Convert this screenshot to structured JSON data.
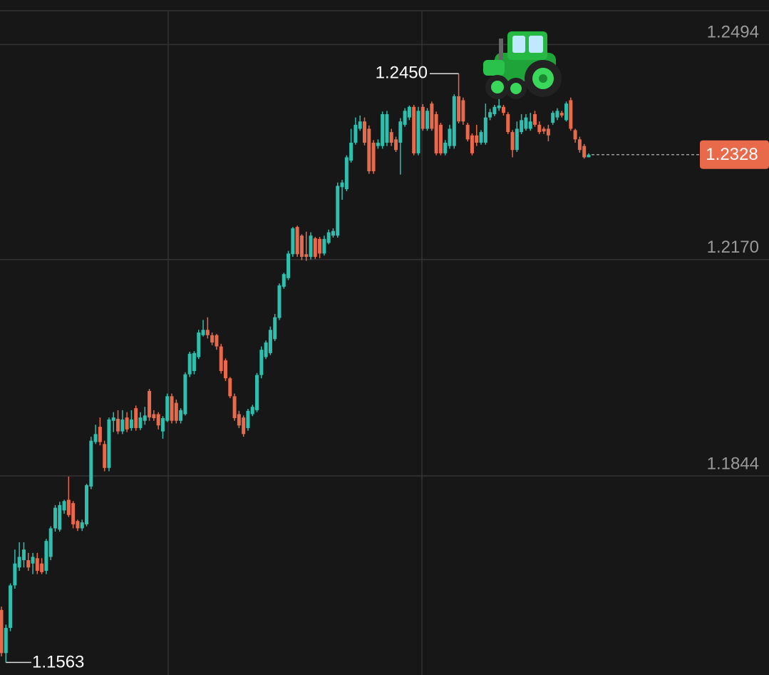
{
  "chart_data": {
    "type": "candlestick",
    "ylim": [
      1.1544,
      1.2561
    ],
    "yticks": [
      {
        "value": 1.1844,
        "label": "1.1844"
      },
      {
        "value": 1.217,
        "label": "1.2170"
      },
      {
        "value": 1.2494,
        "label": "1.2494"
      }
    ],
    "grid": true,
    "up_color": "#2fbfae",
    "down_color": "#e9694b",
    "last_price": 1.2328,
    "high_marker": {
      "value": 1.245,
      "label": "1.2450"
    },
    "low_marker": 1.1563,
    "open": [
      1.1642,
      1.1577,
      1.1615,
      1.1679,
      1.1706,
      1.1717,
      1.1717,
      1.1712,
      1.172,
      1.1712,
      1.1701,
      1.1722,
      1.1765,
      1.1763,
      1.1792,
      1.1808,
      1.1803,
      1.1776,
      1.1765,
      1.1771,
      1.1828,
      1.1895,
      1.1918,
      1.1892,
      1.1856,
      1.1927,
      1.193,
      1.1911,
      1.1932,
      1.1916,
      1.1946,
      1.1916,
      1.1927,
      1.1972,
      1.1937,
      1.1937,
      1.1911,
      1.1927,
      1.1964,
      1.1954,
      1.1927,
      1.1937,
      1.1997,
      1.2002,
      1.2023,
      1.2056,
      1.2064,
      1.2056,
      1.2056,
      1.2039,
      1.2018,
      1.1991,
      1.1964,
      1.1937,
      1.1932,
      1.1916,
      1.1937,
      1.1943,
      1.1996,
      1.2023,
      1.2029,
      1.205,
      1.2082,
      1.2129,
      1.2142,
      1.2178,
      1.2219,
      1.2206,
      1.2178,
      1.2174,
      1.2202,
      1.2201,
      1.2179,
      1.2195,
      1.2206,
      1.2206,
      1.2279,
      1.2276,
      1.2319,
      1.2346,
      1.2367,
      1.2378,
      1.2367,
      1.2346,
      1.2341,
      1.2341,
      1.2346,
      1.2362,
      1.2351,
      1.2346,
      1.2373,
      1.2384,
      1.24,
      1.233,
      1.24,
      1.2367,
      1.2405,
      1.2389,
      1.2373,
      1.233,
      1.2341,
      1.2341,
      1.2416,
      1.241,
      1.2373,
      1.2357,
      1.2357,
      1.2346,
      1.2346,
      1.2384,
      1.2389,
      1.2398,
      1.24,
      1.2389,
      1.2362,
      1.2335,
      1.2362,
      1.2367,
      1.2367,
      1.2389,
      1.2373,
      1.2367,
      1.2367,
      1.2376,
      1.2384,
      1.2391,
      1.238,
      1.241,
      1.2365,
      1.2351,
      1.2341,
      1.2324
    ],
    "high": [
      1.1647,
      1.162,
      1.1682,
      1.1733,
      1.1744,
      1.1744,
      1.1728,
      1.1728,
      1.1728,
      1.172,
      1.1749,
      1.1768,
      1.18,
      1.1805,
      1.1808,
      1.1843,
      1.1806,
      1.1778,
      1.1778,
      1.1832,
      1.1903,
      1.1921,
      1.1932,
      1.1897,
      1.1932,
      1.194,
      1.1943,
      1.1943,
      1.194,
      1.1943,
      1.195,
      1.194,
      1.1948,
      1.1975,
      1.1943,
      1.194,
      1.1934,
      1.1968,
      1.1968,
      1.1959,
      1.1946,
      1.2,
      1.2031,
      1.2032,
      1.2064,
      1.2079,
      1.2083,
      1.206,
      1.2058,
      1.2043,
      1.2021,
      1.1993,
      1.1968,
      1.1942,
      1.1935,
      1.1945,
      1.1951,
      1.1999,
      1.2039,
      1.2048,
      1.2069,
      1.2088,
      1.2134,
      1.215,
      1.2183,
      1.2219,
      1.2221,
      1.2208,
      1.2212,
      1.2211,
      1.2204,
      1.2204,
      1.2206,
      1.2215,
      1.2217,
      1.2286,
      1.229,
      1.2327,
      1.2367,
      1.2384,
      1.2387,
      1.2384,
      1.2372,
      1.235,
      1.2351,
      1.2393,
      1.2394,
      1.2367,
      1.2355,
      1.2383,
      1.2398,
      1.2402,
      1.2403,
      1.24,
      1.2404,
      1.2398,
      1.2408,
      1.2393,
      1.2376,
      1.235,
      1.2373,
      1.2419,
      1.245,
      1.2414,
      1.2376,
      1.236,
      1.2373,
      1.2365,
      1.2405,
      1.2397,
      1.2403,
      1.2413,
      1.2403,
      1.2392,
      1.2365,
      1.2378,
      1.2389,
      1.2389,
      1.2391,
      1.2394,
      1.2378,
      1.237,
      1.2373,
      1.2394,
      1.2398,
      1.2394,
      1.2408,
      1.2414,
      1.2367,
      1.2355,
      1.2344,
      1.233
    ],
    "low": [
      1.1572,
      1.1563,
      1.161,
      1.1674,
      1.1701,
      1.1706,
      1.1701,
      1.1696,
      1.1696,
      1.1696,
      1.1696,
      1.1717,
      1.176,
      1.176,
      1.1787,
      1.1782,
      1.1765,
      1.1761,
      1.1761,
      1.1768,
      1.1824,
      1.1892,
      1.189,
      1.1851,
      1.1851,
      1.191,
      1.1907,
      1.1907,
      1.191,
      1.1912,
      1.1912,
      1.1913,
      1.1921,
      1.1927,
      1.1927,
      1.1914,
      1.19,
      1.1925,
      1.1923,
      1.1923,
      1.1923,
      1.1935,
      1.1993,
      1.1997,
      1.202,
      1.2054,
      1.2051,
      1.2041,
      1.2034,
      1.1998,
      1.1987,
      1.1961,
      1.1927,
      1.1916,
      1.1903,
      1.1912,
      1.1934,
      1.194,
      1.1991,
      1.202,
      1.2026,
      1.2047,
      1.2079,
      1.2126,
      1.2139,
      1.2174,
      1.2174,
      1.2169,
      1.2168,
      1.217,
      1.2171,
      1.2172,
      1.2176,
      1.2193,
      1.2203,
      1.2203,
      1.226,
      1.2273,
      1.2316,
      1.2343,
      1.2364,
      1.2342,
      1.2299,
      1.2299,
      1.2337,
      1.2337,
      1.2341,
      1.2341,
      1.2332,
      1.2298,
      1.237,
      1.238,
      1.2327,
      1.2327,
      1.2364,
      1.2364,
      1.2364,
      1.2327,
      1.2327,
      1.2327,
      1.2337,
      1.2337,
      1.2375,
      1.2373,
      1.2348,
      1.2327,
      1.2341,
      1.2343,
      1.2343,
      1.238,
      1.2386,
      1.2394,
      1.2387,
      1.2359,
      1.2324,
      1.2332,
      1.2359,
      1.2364,
      1.2364,
      1.237,
      1.2359,
      1.2359,
      1.2348,
      1.2373,
      1.238,
      1.2384,
      1.2378,
      1.2364,
      1.2346,
      1.2331,
      1.2322,
      1.2324
    ],
    "close": [
      1.1577,
      1.1615,
      1.1679,
      1.1712,
      1.1722,
      1.1733,
      1.1706,
      1.1722,
      1.1701,
      1.1699,
      1.1746,
      1.1765,
      1.1796,
      1.18,
      1.1806,
      1.1785,
      1.1771,
      1.1765,
      1.1774,
      1.183,
      1.1897,
      1.1907,
      1.1895,
      1.1856,
      1.1929,
      1.1932,
      1.1911,
      1.1929,
      1.1914,
      1.1929,
      1.1916,
      1.1932,
      1.1935,
      1.1932,
      1.1931,
      1.192,
      1.1931,
      1.1964,
      1.1927,
      1.1927,
      1.1943,
      1.1997,
      1.2028,
      1.2029,
      1.206,
      1.2064,
      1.2056,
      1.2045,
      1.2039,
      1.2002,
      1.1991,
      1.1964,
      1.1931,
      1.192,
      1.1907,
      1.1942,
      1.1948,
      1.1996,
      1.2034,
      1.2045,
      1.2064,
      1.2083,
      1.2131,
      1.2148,
      1.2179,
      1.2217,
      1.2178,
      1.2174,
      1.2174,
      1.2206,
      1.2174,
      1.2179,
      1.2201,
      1.2211,
      1.2213,
      1.2281,
      1.2286,
      1.2324,
      1.2346,
      1.2373,
      1.2378,
      1.2346,
      1.2303,
      1.2303,
      1.2346,
      1.2389,
      1.2389,
      1.2346,
      1.2335,
      1.2378,
      1.2394,
      1.24,
      1.233,
      1.2394,
      1.2367,
      1.2394,
      1.2367,
      1.233,
      1.233,
      1.2346,
      1.2367,
      1.2416,
      1.2378,
      1.2378,
      1.2351,
      1.233,
      1.2346,
      1.2362,
      1.2384,
      1.2392,
      1.24,
      1.2402,
      1.2391,
      1.2362,
      1.2335,
      1.2367,
      1.238,
      1.2384,
      1.2378,
      1.2373,
      1.2362,
      1.2363,
      1.2357,
      1.2391,
      1.2394,
      1.2387,
      1.2405,
      1.2367,
      1.2351,
      1.2335,
      1.2324,
      1.2328
    ]
  }
}
